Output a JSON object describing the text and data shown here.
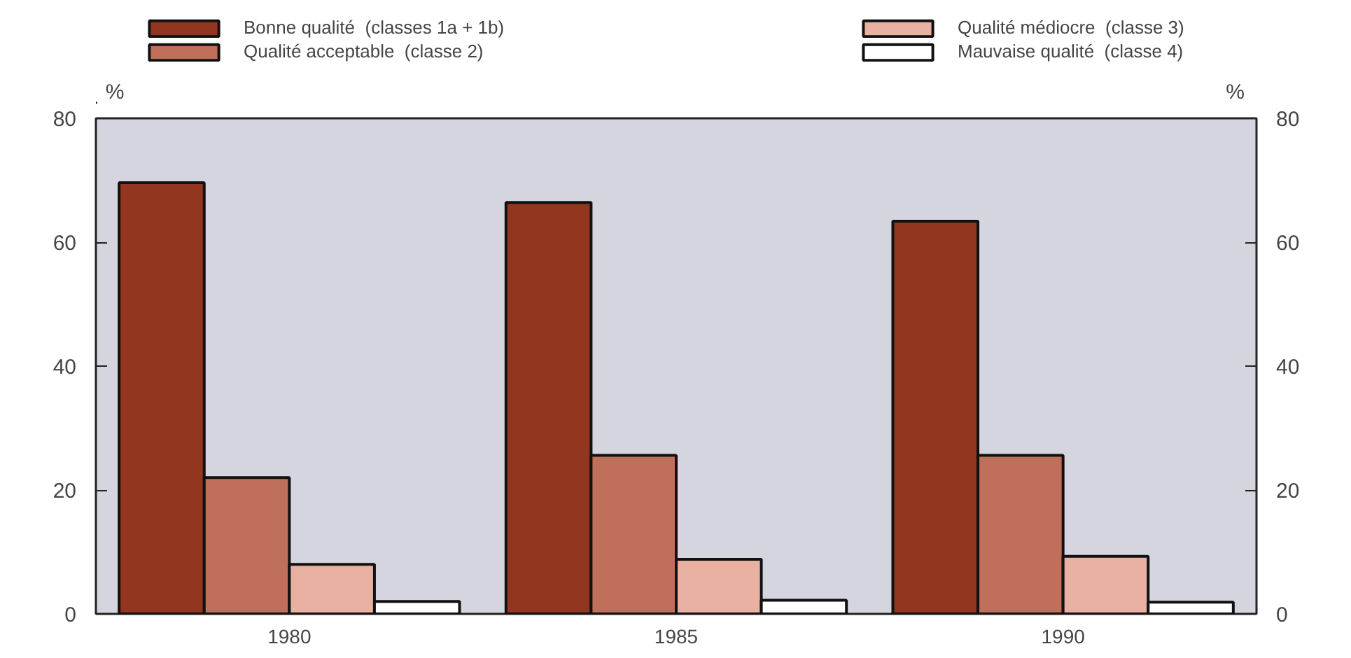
{
  "chart_data": {
    "type": "bar",
    "categories": [
      "1980",
      "1985",
      "1990"
    ],
    "series": [
      {
        "name": "Bonne qualité  (classes 1a + 1b)",
        "color": "#93361f",
        "values": [
          69.6,
          66.4,
          63.4
        ]
      },
      {
        "name": "Qualité acceptable  (classe 2)",
        "color": "#c0705a",
        "values": [
          22.0,
          25.6,
          25.6
        ]
      },
      {
        "name": "Qualité médiocre  (classe 3)",
        "color": "#e8b1a2",
        "values": [
          8.0,
          8.8,
          9.3
        ]
      },
      {
        "name": "Mauvaise qualité  (classe 4)",
        "color": "#ffffff",
        "values": [
          2.0,
          2.2,
          1.9
        ]
      }
    ],
    "ylabel": "%",
    "y2label": "%",
    "ylim": [
      0,
      80
    ],
    "yticks": [
      0,
      20,
      40,
      60,
      80
    ],
    "y2lim": [
      0,
      80
    ],
    "y2ticks": [
      0,
      20,
      40,
      60,
      80
    ],
    "grid": false,
    "legend": "top"
  }
}
